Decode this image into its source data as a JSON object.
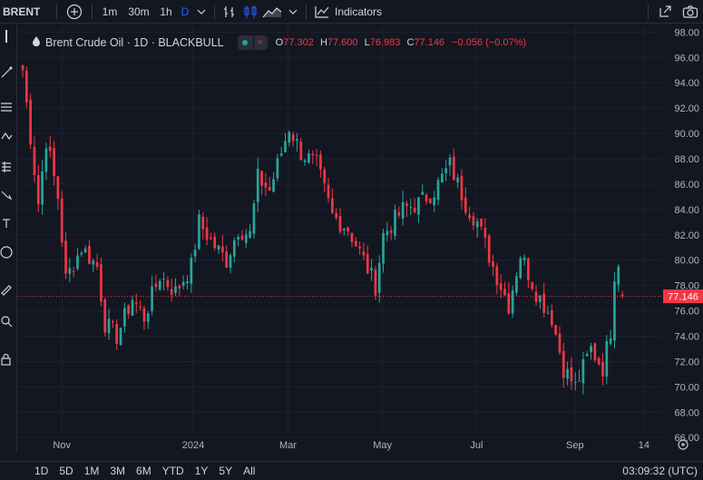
{
  "toolbar": {
    "symbol": "BRENT",
    "intervals": [
      "1m",
      "30m",
      "1h",
      "D"
    ],
    "indicators_label": "Indicators"
  },
  "legend": {
    "name": "Brent Crude Oil · 1D · BLACKBULL",
    "o_label": "O",
    "o_value": "77.302",
    "h_label": "H",
    "h_value": "77.600",
    "l_label": "L",
    "l_value": "76.983",
    "c_label": "C",
    "c_value": "77.146",
    "change": "−0.056 (−0.07%)"
  },
  "price_tag": "77.146",
  "bottom": {
    "ranges": [
      "1D",
      "5D",
      "1M",
      "3M",
      "6M",
      "YTD",
      "1Y",
      "5Y",
      "All"
    ],
    "clock": "03:09:32 (UTC)"
  },
  "colors": {
    "background": "#131722",
    "up": "#26a69a",
    "down": "#f23645",
    "grid": "#1e222d",
    "text": "#d1d4dc",
    "axis_text": "#b2b5be",
    "accent": "#2962ff"
  },
  "icons": [
    "plus-circle-icon",
    "bar-style-icon",
    "candles-icon",
    "area-icon",
    "chevron-down-icon",
    "indicators-icon",
    "fullscreen-icon",
    "camera-icon",
    "gear-icon"
  ],
  "chart_data": {
    "type": "candlestick",
    "title": "Brent Crude Oil · 1D · BLACKBULL",
    "yticks": [
      66,
      68,
      70,
      72,
      74,
      76,
      78,
      80,
      82,
      84,
      86,
      88,
      90,
      92,
      94,
      96,
      98
    ],
    "ylim": [
      64.8,
      98.6
    ],
    "xtick_labels": [
      "Nov",
      "2024",
      "Mar",
      "May",
      "Jul",
      "Sep",
      "14"
    ],
    "xtick_positions": [
      10,
      43.5,
      67.7,
      91.8,
      115.8,
      140.9,
      158.5
    ],
    "xlim": [
      0,
      162
    ],
    "last_price": 77.146,
    "last_ohlc": {
      "open": 77.302,
      "high": 77.6,
      "low": 76.983,
      "close": 77.146
    },
    "anchors": [
      [
        0,
        95.0
      ],
      [
        4,
        84.5
      ],
      [
        6,
        89.5
      ],
      [
        9,
        85.0
      ],
      [
        11,
        78.5
      ],
      [
        15,
        81.0
      ],
      [
        19,
        79.5
      ],
      [
        21,
        75.0
      ],
      [
        24,
        74.0
      ],
      [
        28,
        77.0
      ],
      [
        31,
        75.5
      ],
      [
        35,
        78.8
      ],
      [
        39,
        77.5
      ],
      [
        43,
        79.5
      ],
      [
        45,
        83.0
      ],
      [
        48,
        81.5
      ],
      [
        52,
        80.0
      ],
      [
        55,
        82.5
      ],
      [
        58,
        82.0
      ],
      [
        60,
        86.5
      ],
      [
        63,
        85.5
      ],
      [
        65,
        87.5
      ],
      [
        68,
        90.5
      ],
      [
        71,
        88.5
      ],
      [
        75,
        87.5
      ],
      [
        79,
        83.5
      ],
      [
        83,
        82.5
      ],
      [
        87,
        80.0
      ],
      [
        90,
        78.0
      ],
      [
        92,
        82.0
      ],
      [
        97,
        84.0
      ],
      [
        101,
        84.5
      ],
      [
        105,
        85.5
      ],
      [
        109,
        87.5
      ],
      [
        113,
        84.5
      ],
      [
        116,
        83.0
      ],
      [
        120,
        79.5
      ],
      [
        124,
        76.5
      ],
      [
        127,
        80.5
      ],
      [
        131,
        77.5
      ],
      [
        135,
        75.5
      ],
      [
        138,
        71.5
      ],
      [
        141,
        70.0
      ],
      [
        145,
        73.0
      ],
      [
        148,
        71.5
      ],
      [
        150,
        74.5
      ],
      [
        151,
        79.0
      ],
      [
        152,
        80.0
      ],
      [
        153,
        77.146
      ]
    ]
  }
}
